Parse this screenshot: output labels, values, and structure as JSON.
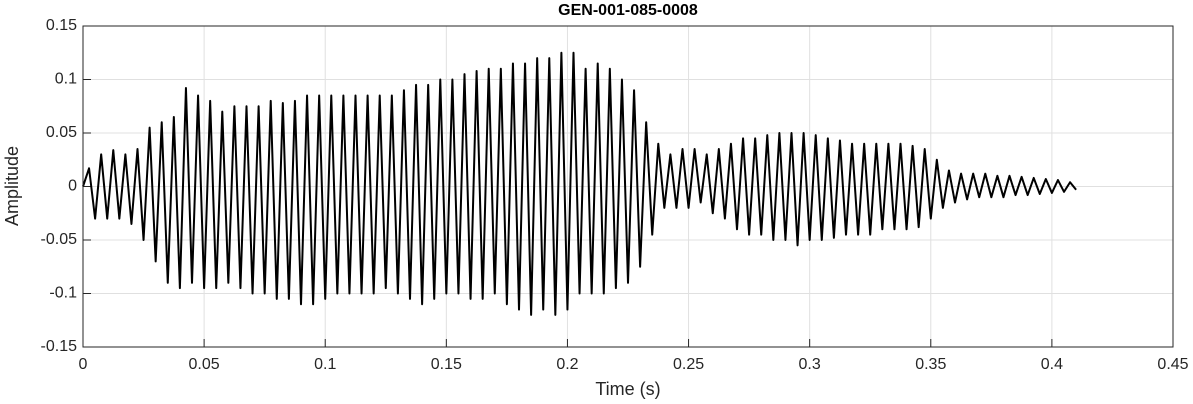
{
  "chart_data": {
    "type": "line",
    "title": "GEN-001-085-0008",
    "x_label": "Time (s)",
    "y_label": "Amplitude",
    "x": [
      0,
      0.0025,
      0.005,
      0.0075,
      0.01,
      0.0125,
      0.015,
      0.0175,
      0.02,
      0.0225,
      0.025,
      0.0275,
      0.03,
      0.0325,
      0.035,
      0.0375,
      0.04,
      0.0425,
      0.045,
      0.0475,
      0.05,
      0.0525,
      0.055,
      0.0575,
      0.06,
      0.0625,
      0.065,
      0.0675,
      0.07,
      0.0725,
      0.075,
      0.0775,
      0.08,
      0.0825,
      0.085,
      0.0875,
      0.09,
      0.0925,
      0.095,
      0.0975,
      0.1,
      0.1025,
      0.105,
      0.1075,
      0.11,
      0.1125,
      0.115,
      0.1175,
      0.12,
      0.1225,
      0.125,
      0.1275,
      0.13,
      0.1325,
      0.135,
      0.1375,
      0.14,
      0.1425,
      0.145,
      0.1475,
      0.15,
      0.1525,
      0.155,
      0.1575,
      0.16,
      0.1625,
      0.165,
      0.1675,
      0.17,
      0.1725,
      0.175,
      0.1775,
      0.18,
      0.1825,
      0.185,
      0.1875,
      0.19,
      0.1925,
      0.195,
      0.1975,
      0.2,
      0.2025,
      0.205,
      0.2075,
      0.21,
      0.2125,
      0.215,
      0.2175,
      0.22,
      0.2225,
      0.225,
      0.2275,
      0.23,
      0.2325,
      0.235,
      0.2375,
      0.24,
      0.2425,
      0.245,
      0.2475,
      0.25,
      0.2525,
      0.255,
      0.2575,
      0.26,
      0.2625,
      0.265,
      0.2675,
      0.27,
      0.2725,
      0.275,
      0.2775,
      0.28,
      0.2825,
      0.285,
      0.2875,
      0.29,
      0.2925,
      0.295,
      0.2975,
      0.3,
      0.3025,
      0.305,
      0.3075,
      0.31,
      0.3125,
      0.315,
      0.3175,
      0.32,
      0.3225,
      0.325,
      0.3275,
      0.33,
      0.3325,
      0.335,
      0.3375,
      0.34,
      0.3425,
      0.345,
      0.3475,
      0.35,
      0.3525,
      0.355,
      0.3575,
      0.36,
      0.3625,
      0.365,
      0.3675,
      0.37,
      0.3725,
      0.375,
      0.3775,
      0.38,
      0.3825,
      0.385,
      0.3875,
      0.39,
      0.3925,
      0.395,
      0.3975,
      0.4,
      0.4025,
      0.405,
      0.4075,
      0.41
    ],
    "series": [
      {
        "color": "#000000",
        "values": [
          0,
          0.017,
          -0.03,
          0.03,
          -0.03,
          0.034,
          -0.03,
          0.03,
          -0.035,
          0.035,
          -0.05,
          0.055,
          -0.07,
          0.06,
          -0.09,
          0.065,
          -0.095,
          0.092,
          -0.09,
          0.085,
          -0.095,
          0.08,
          -0.095,
          0.07,
          -0.09,
          0.075,
          -0.095,
          0.075,
          -0.1,
          0.075,
          -0.1,
          0.08,
          -0.105,
          0.078,
          -0.105,
          0.08,
          -0.11,
          0.085,
          -0.11,
          0.085,
          -0.105,
          0.085,
          -0.1,
          0.085,
          -0.1,
          0.085,
          -0.1,
          0.085,
          -0.1,
          0.085,
          -0.095,
          0.085,
          -0.1,
          0.09,
          -0.105,
          0.095,
          -0.11,
          0.095,
          -0.105,
          0.1,
          -0.1,
          0.1,
          -0.1,
          0.105,
          -0.105,
          0.108,
          -0.105,
          0.11,
          -0.1,
          0.11,
          -0.11,
          0.115,
          -0.115,
          0.115,
          -0.12,
          0.12,
          -0.115,
          0.12,
          -0.12,
          0.125,
          -0.115,
          0.125,
          -0.1,
          0.11,
          -0.1,
          0.115,
          -0.1,
          0.11,
          -0.095,
          0.1,
          -0.09,
          0.09,
          -0.075,
          0.06,
          -0.045,
          0.04,
          -0.02,
          0.03,
          -0.02,
          0.035,
          -0.02,
          0.035,
          -0.015,
          0.03,
          -0.025,
          0.035,
          -0.03,
          0.04,
          -0.04,
          0.045,
          -0.045,
          0.045,
          -0.045,
          0.048,
          -0.05,
          0.05,
          -0.05,
          0.05,
          -0.055,
          0.05,
          -0.05,
          0.048,
          -0.05,
          0.045,
          -0.048,
          0.043,
          -0.045,
          0.04,
          -0.045,
          0.04,
          -0.045,
          0.04,
          -0.04,
          0.04,
          -0.04,
          0.04,
          -0.04,
          0.038,
          -0.038,
          0.035,
          -0.03,
          0.025,
          -0.02,
          0.015,
          -0.015,
          0.012,
          -0.012,
          0.012,
          -0.01,
          0.012,
          -0.01,
          0.01,
          -0.01,
          0.01,
          -0.008,
          0.009,
          -0.008,
          0.008,
          -0.007,
          0.007,
          -0.006,
          0.006,
          -0.005,
          0.004,
          -0.003
        ]
      }
    ],
    "xlim": [
      0,
      0.45
    ],
    "xticks": [
      0,
      0.05,
      0.1,
      0.15,
      0.2,
      0.25,
      0.3,
      0.35,
      0.4,
      0.45
    ],
    "ylim": [
      -0.15,
      0.15
    ],
    "yticks": [
      -0.15,
      -0.1,
      -0.05,
      0,
      0.05,
      0.1,
      0.15
    ],
    "grid": true
  }
}
